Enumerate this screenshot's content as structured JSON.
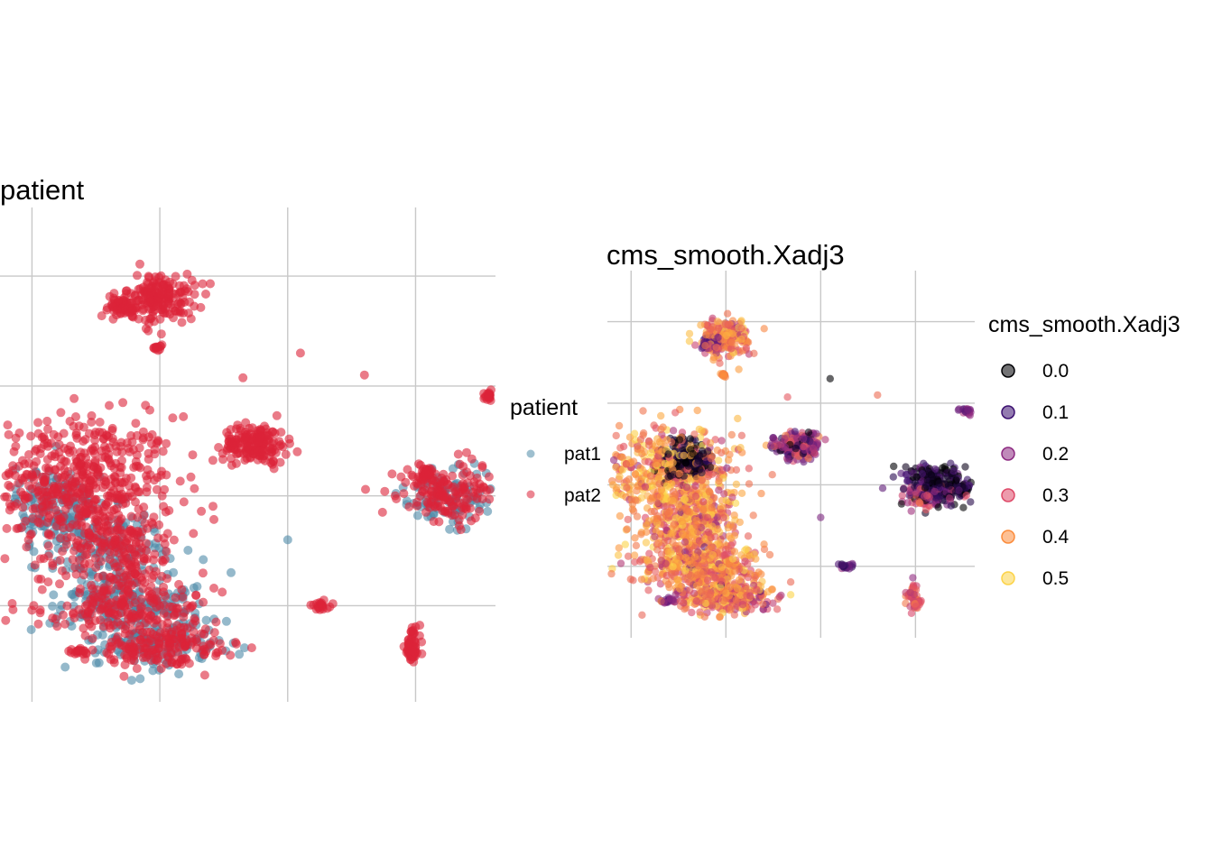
{
  "palette": {
    "pat1": "#4f8aa8",
    "pat2": "#dc2339",
    "gradient": [
      "#000004",
      "#3b0f70",
      "#8c2981",
      "#de4968",
      "#fb8c3c",
      "#fcd348"
    ]
  },
  "chart_data": [
    {
      "type": "scatter",
      "title": "patient",
      "xlabel": "",
      "ylabel": "",
      "grid": true,
      "legend": {
        "title": "patient",
        "placement": "right",
        "entries": [
          {
            "label": "pat1",
            "color": "#4f8aa8"
          },
          {
            "label": "pat2",
            "color": "#dc2339"
          }
        ]
      },
      "xlim": [
        -1,
        14.5
      ],
      "ylim": [
        0.5,
        18.5
      ],
      "x_breaks": [
        0,
        4,
        8,
        12
      ],
      "y_breaks": [
        4,
        8,
        12,
        16
      ],
      "clusters": [
        {
          "x": 1.5,
          "y": 8.5,
          "sx": 1.5,
          "sy": 1.2,
          "n": 500,
          "group": "pat2"
        },
        {
          "x": 2.5,
          "y": 6.0,
          "sx": 0.9,
          "sy": 0.9,
          "n": 350,
          "group": "mixed"
        },
        {
          "x": 3.0,
          "y": 4.0,
          "sx": 1.3,
          "sy": 0.5,
          "n": 350,
          "group": "mixed"
        },
        {
          "x": 4.0,
          "y": 2.5,
          "sx": 1.0,
          "sy": 0.4,
          "n": 300,
          "group": "mixed"
        },
        {
          "x": 0.7,
          "y": 7.5,
          "sx": 0.6,
          "sy": 0.8,
          "n": 150,
          "group": "pat1"
        },
        {
          "x": 4.0,
          "y": 15.2,
          "sx": 0.55,
          "sy": 0.45,
          "n": 180,
          "group": "pat2"
        },
        {
          "x": 2.7,
          "y": 14.9,
          "sx": 0.3,
          "sy": 0.2,
          "n": 50,
          "group": "pat2"
        },
        {
          "x": 7.0,
          "y": 9.9,
          "sx": 0.5,
          "sy": 0.35,
          "n": 170,
          "group": "pat2"
        },
        {
          "x": 13.0,
          "y": 8.0,
          "sx": 0.8,
          "sy": 0.5,
          "n": 260,
          "group": "mixed"
        },
        {
          "x": 12.3,
          "y": 8.8,
          "sx": 0.2,
          "sy": 0.2,
          "n": 30,
          "group": "pat2"
        },
        {
          "x": 14.3,
          "y": 11.6,
          "sx": 0.2,
          "sy": 0.1,
          "n": 30,
          "group": "pat2"
        },
        {
          "x": 11.9,
          "y": 2.5,
          "sx": 0.12,
          "sy": 0.35,
          "n": 60,
          "group": "pat2"
        },
        {
          "x": 9.1,
          "y": 4.0,
          "sx": 0.18,
          "sy": 0.08,
          "n": 20,
          "group": "pat2"
        },
        {
          "x": 3.9,
          "y": 13.4,
          "sx": 0.08,
          "sy": 0.05,
          "n": 12,
          "group": "pat2"
        },
        {
          "x": 1.5,
          "y": 2.3,
          "sx": 0.18,
          "sy": 0.08,
          "n": 20,
          "group": "pat2"
        }
      ],
      "singletons": [
        {
          "x": 6.6,
          "y": 12.3,
          "group": "pat2"
        },
        {
          "x": 8.4,
          "y": 13.2,
          "group": "pat2"
        },
        {
          "x": 10.4,
          "y": 12.4,
          "group": "pat2"
        },
        {
          "x": 8.0,
          "y": 6.4,
          "group": "pat1"
        }
      ]
    },
    {
      "type": "scatter",
      "title": "cms_smooth.Xadj3",
      "xlabel": "",
      "ylabel": "",
      "grid": true,
      "legend": {
        "title": "cms_smooth.Xadj3",
        "placement": "right",
        "entries": [
          {
            "label": "0.0",
            "value": 0.0,
            "color": "#000004"
          },
          {
            "label": "0.1",
            "value": 0.1,
            "color": "#3b0f70"
          },
          {
            "label": "0.2",
            "value": 0.2,
            "color": "#8c2981"
          },
          {
            "label": "0.3",
            "value": 0.3,
            "color": "#de4968"
          },
          {
            "label": "0.4",
            "value": 0.4,
            "color": "#fb8c3c"
          },
          {
            "label": "0.5",
            "value": 0.5,
            "color": "#fcd348"
          }
        ]
      },
      "xlim": [
        -1,
        14.5
      ],
      "ylim": [
        0.5,
        18.5
      ],
      "x_breaks": [
        0,
        4,
        8,
        12
      ],
      "y_breaks": [
        4,
        8,
        12,
        16
      ],
      "clusters": [
        {
          "x": 1.5,
          "y": 8.5,
          "sx": 1.5,
          "sy": 1.2,
          "n": 500,
          "v": 0.4,
          "vs": 0.07
        },
        {
          "x": 2.3,
          "y": 9.3,
          "sx": 0.5,
          "sy": 0.5,
          "n": 180,
          "v": 0.03,
          "vs": 0.03
        },
        {
          "x": 2.5,
          "y": 6.0,
          "sx": 0.9,
          "sy": 0.9,
          "n": 350,
          "v": 0.38,
          "vs": 0.08
        },
        {
          "x": 3.0,
          "y": 4.0,
          "sx": 1.3,
          "sy": 0.5,
          "n": 350,
          "v": 0.38,
          "vs": 0.08
        },
        {
          "x": 4.0,
          "y": 2.5,
          "sx": 1.0,
          "sy": 0.4,
          "n": 300,
          "v": 0.36,
          "vs": 0.08
        },
        {
          "x": 4.0,
          "y": 15.2,
          "sx": 0.55,
          "sy": 0.45,
          "n": 180,
          "v": 0.36,
          "vs": 0.07
        },
        {
          "x": 3.3,
          "y": 14.9,
          "sx": 0.25,
          "sy": 0.2,
          "n": 50,
          "v": 0.18,
          "vs": 0.05
        },
        {
          "x": 3.9,
          "y": 13.4,
          "sx": 0.08,
          "sy": 0.05,
          "n": 12,
          "v": 0.38,
          "vs": 0.02
        },
        {
          "x": 7.0,
          "y": 9.9,
          "sx": 0.5,
          "sy": 0.35,
          "n": 170,
          "v": 0.2,
          "vs": 0.1
        },
        {
          "x": 13.0,
          "y": 8.0,
          "sx": 0.8,
          "sy": 0.5,
          "n": 260,
          "v": 0.06,
          "vs": 0.07
        },
        {
          "x": 12.5,
          "y": 7.5,
          "sx": 0.5,
          "sy": 0.25,
          "n": 60,
          "v": 0.27,
          "vs": 0.05
        },
        {
          "x": 14.3,
          "y": 11.6,
          "sx": 0.2,
          "sy": 0.1,
          "n": 30,
          "v": 0.18,
          "vs": 0.04
        },
        {
          "x": 11.9,
          "y": 2.5,
          "sx": 0.12,
          "sy": 0.35,
          "n": 60,
          "v": 0.32,
          "vs": 0.04
        },
        {
          "x": 9.1,
          "y": 4.0,
          "sx": 0.18,
          "sy": 0.08,
          "n": 20,
          "v": 0.12,
          "vs": 0.03
        },
        {
          "x": 1.5,
          "y": 2.3,
          "sx": 0.18,
          "sy": 0.08,
          "n": 20,
          "v": 0.18,
          "vs": 0.03
        }
      ],
      "singletons": [
        {
          "x": 6.6,
          "y": 12.3,
          "v": 0.32
        },
        {
          "x": 8.4,
          "y": 13.2,
          "v": 0.0
        },
        {
          "x": 10.4,
          "y": 12.4,
          "v": 0.35
        },
        {
          "x": 8.0,
          "y": 6.4,
          "v": 0.18
        }
      ]
    }
  ]
}
